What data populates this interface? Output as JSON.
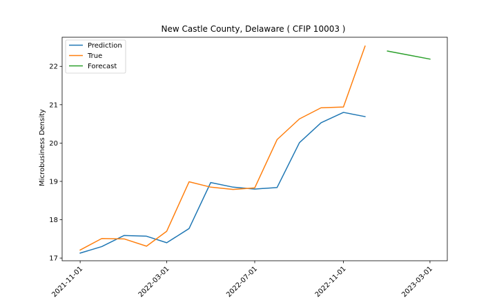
{
  "chart_data": {
    "type": "line",
    "title": "New Castle County, Delaware ( CFIP 10003 )",
    "xlabel": "",
    "ylabel": "Microbusiness Density",
    "x_ticks": [
      "2021-11-01",
      "2022-03-01",
      "2022-07-01",
      "2022-11-01",
      "2023-03-01"
    ],
    "y_ticks": [
      17,
      18,
      19,
      20,
      21,
      22
    ],
    "xlim": [
      "2021-10-07",
      "2023-03-25"
    ],
    "ylim": [
      16.93,
      22.76
    ],
    "grid": false,
    "legend_position": "top-left",
    "series": [
      {
        "name": "Prediction",
        "color": "#1f77b4",
        "points": [
          [
            "2021-11-01",
            17.13
          ],
          [
            "2021-12-01",
            17.3
          ],
          [
            "2022-01-01",
            17.59
          ],
          [
            "2022-02-01",
            17.57
          ],
          [
            "2022-03-01",
            17.4
          ],
          [
            "2022-04-01",
            17.77
          ],
          [
            "2022-05-01",
            18.97
          ],
          [
            "2022-06-01",
            18.85
          ],
          [
            "2022-07-01",
            18.8
          ],
          [
            "2022-08-01",
            18.84
          ],
          [
            "2022-09-01",
            20.01
          ],
          [
            "2022-10-01",
            20.53
          ],
          [
            "2022-11-01",
            20.8
          ],
          [
            "2022-12-01",
            20.69
          ]
        ]
      },
      {
        "name": "True",
        "color": "#ff7f0e",
        "points": [
          [
            "2021-11-01",
            17.21
          ],
          [
            "2021-12-01",
            17.51
          ],
          [
            "2022-01-01",
            17.5
          ],
          [
            "2022-02-01",
            17.31
          ],
          [
            "2022-03-01",
            17.7
          ],
          [
            "2022-04-01",
            18.99
          ],
          [
            "2022-05-01",
            18.85
          ],
          [
            "2022-06-01",
            18.79
          ],
          [
            "2022-07-01",
            18.83
          ],
          [
            "2022-08-01",
            20.09
          ],
          [
            "2022-09-01",
            20.63
          ],
          [
            "2022-10-01",
            20.92
          ],
          [
            "2022-11-01",
            20.94
          ],
          [
            "2022-12-01",
            22.53
          ]
        ]
      },
      {
        "name": "Forecast",
        "color": "#2ca02c",
        "points": [
          [
            "2023-01-01",
            22.4
          ],
          [
            "2023-02-01",
            22.29
          ],
          [
            "2023-03-01",
            22.19
          ]
        ]
      }
    ]
  }
}
